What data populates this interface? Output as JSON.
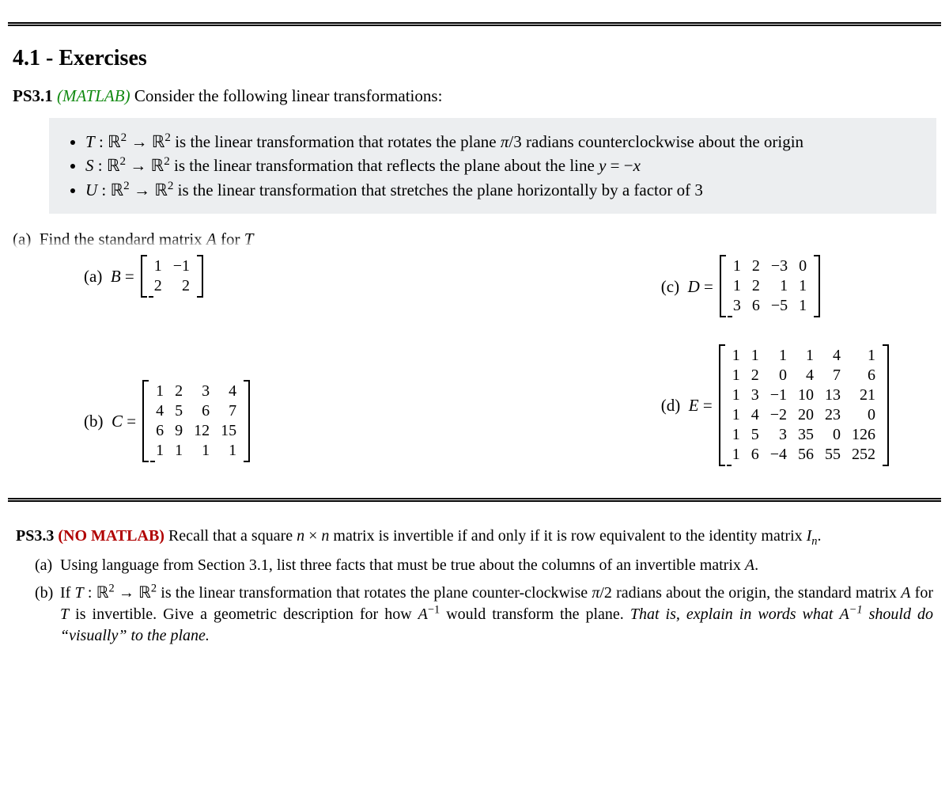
{
  "colors": {
    "background": "#ffffff",
    "text": "#000000",
    "graybox": "#eceef0",
    "matlab_green": "#118a11",
    "no_matlab_red": "#b00000",
    "rule": "#000000"
  },
  "typography": {
    "base_fontsize_pt": 16,
    "section_title_fontsize_pt": 21,
    "matrix_cell_fontsize_pt": 15,
    "ps33_fontsize_pt": 15,
    "font_family": "Computer Modern / serif"
  },
  "section_title": "4.1 - Exercises",
  "ps31": {
    "label": "PS3.1",
    "tag": "(MATLAB)",
    "intro": "Consider the following linear transformations:",
    "bullets": {
      "t": "T : ℝ² → ℝ² is the linear transformation that rotates the plane π/3 radians counterclockwise about the origin",
      "s": "S : ℝ² → ℝ² is the linear transformation that reflects the plane about the line y = −x",
      "u": "U : ℝ² → ℝ² is the linear transformation that stretches the plane horizontally by a factor of 3"
    },
    "truncated_line": "(a) Find the standard matrix A for T"
  },
  "matrices": {
    "a": {
      "label": "(a)  B =",
      "rows": [
        [
          "1",
          "−1"
        ],
        [
          "2",
          "2"
        ]
      ]
    },
    "b": {
      "label": "(b)  C =",
      "rows": [
        [
          "1",
          "2",
          "3",
          "4"
        ],
        [
          "4",
          "5",
          "6",
          "7"
        ],
        [
          "6",
          "9",
          "12",
          "15"
        ],
        [
          "1",
          "1",
          "1",
          "1"
        ]
      ]
    },
    "c": {
      "label": "(c)  D =",
      "rows": [
        [
          "1",
          "2",
          "−3",
          "0"
        ],
        [
          "1",
          "2",
          "1",
          "1"
        ],
        [
          "3",
          "6",
          "−5",
          "1"
        ]
      ]
    },
    "d": {
      "label": "(d)  E =",
      "rows": [
        [
          "1",
          "1",
          "1",
          "1",
          "4",
          "1"
        ],
        [
          "1",
          "2",
          "0",
          "4",
          "7",
          "6"
        ],
        [
          "1",
          "3",
          "−1",
          "10",
          "13",
          "21"
        ],
        [
          "1",
          "4",
          "−2",
          "20",
          "23",
          "0"
        ],
        [
          "1",
          "5",
          "3",
          "35",
          "0",
          "126"
        ],
        [
          "1",
          "6",
          "−4",
          "56",
          "55",
          "252"
        ]
      ]
    }
  },
  "ps33": {
    "label": "PS3.3",
    "tag": "(NO MATLAB)",
    "intro": "Recall that a square n × n matrix is invertible if and only if it is row equivalent to the identity matrix Iₙ.",
    "a": "Using language from Section 3.1, list three facts that must be true about the columns of an invertible matrix A.",
    "b_main": "If T : ℝ² → ℝ² is the linear transformation that rotates the plane counter-clockwise π/2 radians about the origin, the standard matrix A for T is invertible. Give a geometric description for how A⁻¹ would transform the plane.",
    "b_hint": "That is, explain in words what A⁻¹ should do \"visually\" to the plane."
  }
}
